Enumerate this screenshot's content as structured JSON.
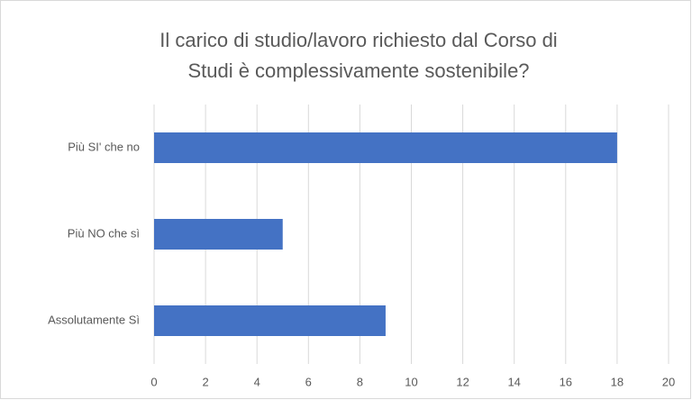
{
  "chart_data": {
    "type": "bar",
    "orientation": "horizontal",
    "title": [
      "Il carico di studio/lavoro richiesto dal Corso di",
      "Studi è complessivamente sostenibile?"
    ],
    "categories": [
      "Più SI' che no",
      "Più NO che sì",
      "Assolutamente Sì"
    ],
    "values": [
      18,
      5,
      9
    ],
    "color": "#4472c4",
    "xlim": [
      0,
      20
    ],
    "xticks": [
      0,
      2,
      4,
      6,
      8,
      10,
      12,
      14,
      16,
      18,
      20
    ],
    "grid": true
  }
}
